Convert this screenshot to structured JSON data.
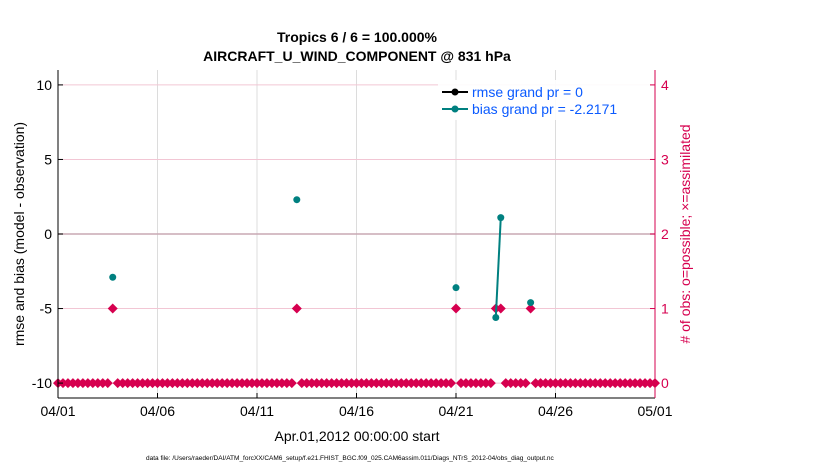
{
  "chart_data": {
    "type": "line",
    "title": "Tropics 6 / 6 = 100.000%",
    "subtitle": "AIRCRAFT_U_WIND_COMPONENT @ 831 hPa",
    "xlabel": "Apr.01,2012 00:00:00 start",
    "ylabel": "rmse and bias (model - observation)",
    "y2label": "# of obs: o=possible; ×=assimilated",
    "footer": "data file: /Users/raeder/DAI/ATM_forcXX/CAM6_setup/f.e21.FHIST_BGC.f09_025.CAM6assim.011/Diags_NTrS_2012-04/obs_diag_output.nc",
    "x_unit": "days since 04/01 00:00",
    "xlim": [
      0,
      30
    ],
    "xticks": [
      0,
      5,
      10,
      15,
      20,
      25,
      30
    ],
    "xtick_labels": [
      "04/01",
      "04/06",
      "04/11",
      "04/16",
      "04/21",
      "04/26",
      "05/01"
    ],
    "ylim": [
      -11,
      11
    ],
    "yticks": [
      10,
      5,
      0,
      -5,
      -10
    ],
    "ytick_labels": [
      "10",
      "5",
      "0",
      "-5",
      "-10"
    ],
    "y2lim": [
      -0.2,
      4.2
    ],
    "y2ticks": [
      4,
      3,
      2,
      1,
      0
    ],
    "y2tick_labels": [
      "4",
      "3",
      "2",
      "1",
      "0"
    ],
    "grid": true,
    "legend_position": "top-right",
    "series": [
      {
        "name": "rmse grand pr = 0",
        "color": "#000000",
        "points": []
      },
      {
        "name": "bias grand pr = -2.2171",
        "color": "#008080",
        "points": [
          [
            2.75,
            -2.9
          ],
          [
            12.0,
            2.3
          ],
          [
            20.0,
            -3.6
          ],
          [
            22.0,
            -5.6
          ],
          [
            22.25,
            1.1
          ],
          [
            23.75,
            -4.6
          ]
        ]
      }
    ],
    "obs_count": {
      "color": "#d6004f",
      "step_days": 0.25,
      "ones_at": [
        2.75,
        12.0,
        20.0,
        22.0,
        22.25,
        23.75
      ]
    }
  }
}
